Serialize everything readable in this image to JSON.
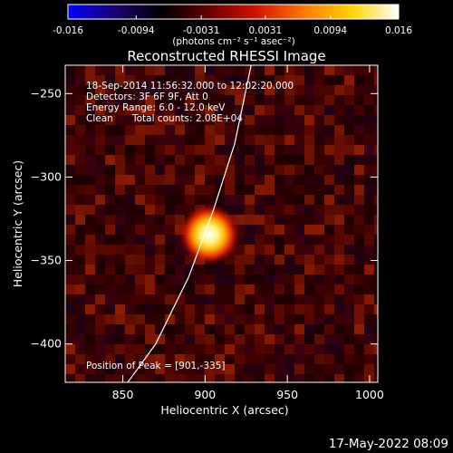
{
  "chart_data": {
    "type": "heatmap",
    "title": "Reconstructed RHESSI Image",
    "xlabel": "Heliocentric X (arcsec)",
    "ylabel": "Heliocentric Y (arcsec)",
    "xlim": [
      815,
      1005
    ],
    "ylim": [
      -423,
      -233
    ],
    "x_ticks": [
      850,
      900,
      950,
      1000
    ],
    "y_ticks": [
      -250,
      -300,
      -350,
      -400
    ],
    "colorbar": {
      "range": [
        -0.016,
        0.016
      ],
      "ticks": [
        "-0.016",
        "-0.0094",
        "-0.0031",
        "0.0031",
        "0.0094",
        "0.016"
      ],
      "unit_label": "(photons cm⁻² s⁻¹ asec⁻²)",
      "colors": [
        "#0000ff",
        "#1a0070",
        "#000000",
        "#6a0000",
        "#d21400",
        "#ff7a00",
        "#ffd400",
        "#ffffff"
      ]
    },
    "annotations": {
      "time_range": "18-Sep-2014 11:56:32.000 to 12:02:20.000",
      "detectors": "Detectors: 3F 6F 9F, Att 0",
      "energy": "Energy Range: 6.0 - 12.0 keV",
      "method": "Clean",
      "counts": "Total counts: 2.08E+04",
      "peak": "Position of Peak = [901,-335]"
    },
    "peak": {
      "x": 901,
      "y": -335
    },
    "limb_points": [
      [
        853,
        -423
      ],
      [
        870,
        -400
      ],
      [
        890,
        -360
      ],
      [
        905,
        -320
      ],
      [
        918,
        -280
      ],
      [
        928,
        -233
      ]
    ]
  },
  "footer": {
    "timestamp": "17-May-2022 08:09"
  }
}
